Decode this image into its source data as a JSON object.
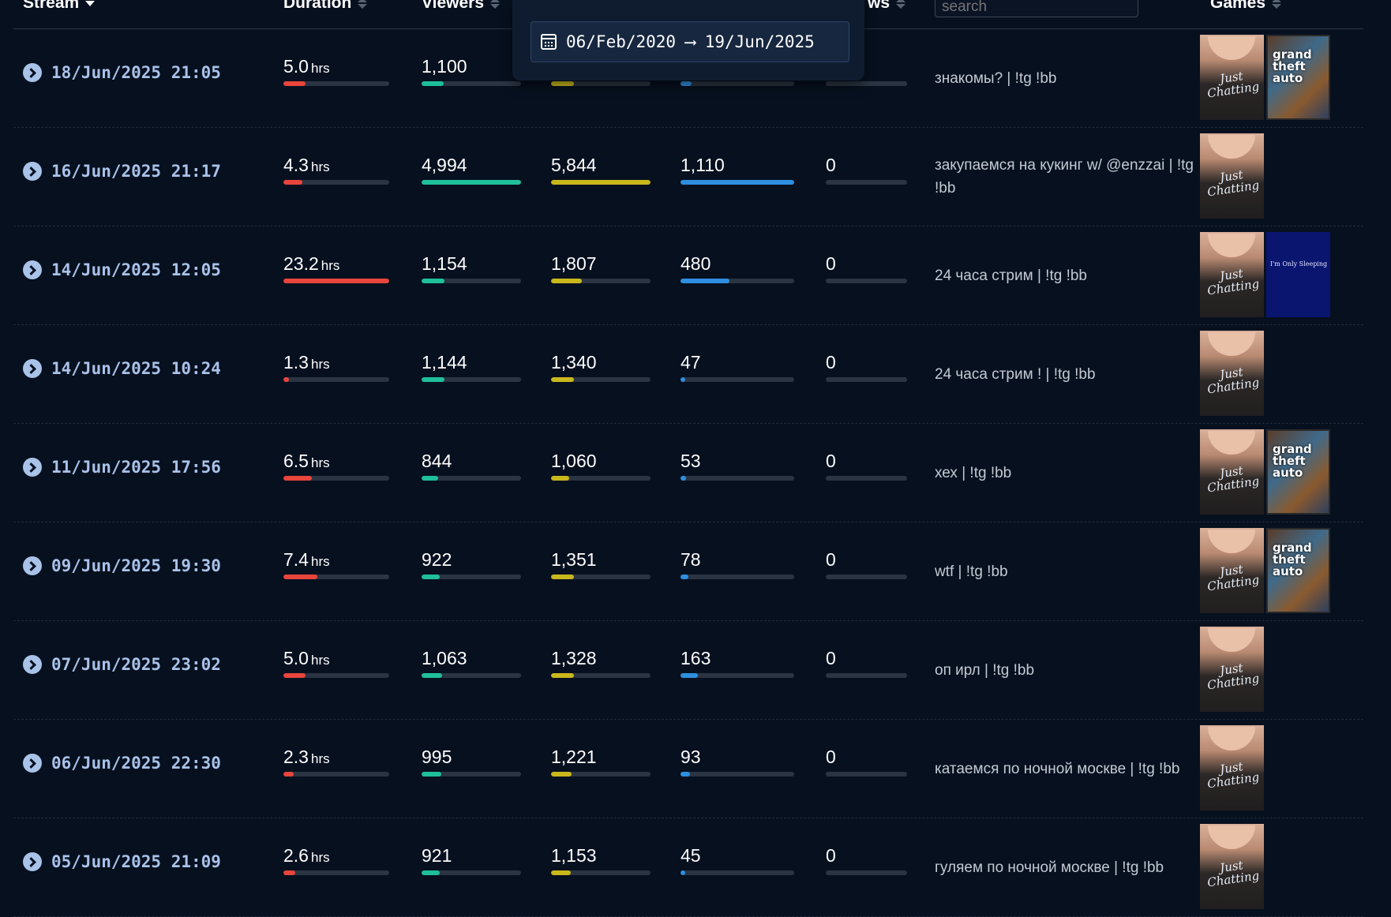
{
  "header": {
    "stream": "Stream",
    "duration": "Duration",
    "viewers": "Viewers",
    "follows_partial": "ws",
    "search_placeholder": "search",
    "games": "Games"
  },
  "date_filter": {
    "from": "06/Feb/2020",
    "arrow": "⟶",
    "to": "19/Jun/2025"
  },
  "colors": {
    "duration": "#e8453c",
    "viewers": "#1fbf9a",
    "peak": "#c9b81c",
    "chatters": "#2e8fe0",
    "followers": "#2a3442"
  },
  "rows": [
    {
      "date": "18/Jun/2025 21:05",
      "duration": "5.0",
      "duration_pct": 0.21,
      "viewers": "1,100",
      "viewers_pct": 0.22,
      "peak": "",
      "peak_pct": 0.23,
      "chatters": "",
      "chatters_pct": 0.1,
      "follows": "",
      "follows_pct": 0,
      "title": "знакомы? | !tg !bb",
      "games": [
        "just-chatting",
        "gta-v"
      ]
    },
    {
      "date": "16/Jun/2025 21:17",
      "duration": "4.3",
      "duration_pct": 0.18,
      "viewers": "4,994",
      "viewers_pct": 1.0,
      "peak": "5,844",
      "peak_pct": 1.0,
      "chatters": "1,110",
      "chatters_pct": 1.0,
      "follows": "0",
      "follows_pct": 0,
      "title": "закупаемся на кукинг w/ @enzzai | !tg !bb",
      "games": [
        "just-chatting"
      ]
    },
    {
      "date": "14/Jun/2025 12:05",
      "duration": "23.2",
      "duration_pct": 1.0,
      "viewers": "1,154",
      "viewers_pct": 0.23,
      "peak": "1,807",
      "peak_pct": 0.31,
      "chatters": "480",
      "chatters_pct": 0.43,
      "follows": "0",
      "follows_pct": 0,
      "title": "24 часа стрим | !tg !bb",
      "games": [
        "just-chatting",
        "im-only-sleeping"
      ]
    },
    {
      "date": "14/Jun/2025 10:24",
      "duration": "1.3",
      "duration_pct": 0.05,
      "viewers": "1,144",
      "viewers_pct": 0.23,
      "peak": "1,340",
      "peak_pct": 0.23,
      "chatters": "47",
      "chatters_pct": 0.04,
      "follows": "0",
      "follows_pct": 0,
      "title": "24 часа стрим ! | !tg !bb",
      "games": [
        "just-chatting"
      ]
    },
    {
      "date": "11/Jun/2025 17:56",
      "duration": "6.5",
      "duration_pct": 0.27,
      "viewers": "844",
      "viewers_pct": 0.17,
      "peak": "1,060",
      "peak_pct": 0.18,
      "chatters": "53",
      "chatters_pct": 0.05,
      "follows": "0",
      "follows_pct": 0,
      "title": "хех | !tg !bb",
      "games": [
        "just-chatting",
        "gta-v"
      ]
    },
    {
      "date": "09/Jun/2025 19:30",
      "duration": "7.4",
      "duration_pct": 0.32,
      "viewers": "922",
      "viewers_pct": 0.18,
      "peak": "1,351",
      "peak_pct": 0.23,
      "chatters": "78",
      "chatters_pct": 0.07,
      "follows": "0",
      "follows_pct": 0,
      "title": "wtf | !tg !bb",
      "games": [
        "just-chatting",
        "gta-v"
      ]
    },
    {
      "date": "07/Jun/2025 23:02",
      "duration": "5.0",
      "duration_pct": 0.21,
      "viewers": "1,063",
      "viewers_pct": 0.21,
      "peak": "1,328",
      "peak_pct": 0.23,
      "chatters": "163",
      "chatters_pct": 0.15,
      "follows": "0",
      "follows_pct": 0,
      "title": "оп ирл | !tg !bb",
      "games": [
        "just-chatting"
      ]
    },
    {
      "date": "06/Jun/2025 22:30",
      "duration": "2.3",
      "duration_pct": 0.1,
      "viewers": "995",
      "viewers_pct": 0.2,
      "peak": "1,221",
      "peak_pct": 0.21,
      "chatters": "93",
      "chatters_pct": 0.08,
      "follows": "0",
      "follows_pct": 0,
      "title": "катаемся по ночной москве | !tg !bb",
      "games": [
        "just-chatting"
      ]
    },
    {
      "date": "05/Jun/2025 21:09",
      "duration": "2.6",
      "duration_pct": 0.11,
      "viewers": "921",
      "viewers_pct": 0.18,
      "peak": "1,153",
      "peak_pct": 0.2,
      "chatters": "45",
      "chatters_pct": 0.04,
      "follows": "0",
      "follows_pct": 0,
      "title": "гуляем по ночной москве | !tg !bb",
      "games": [
        "just-chatting"
      ]
    }
  ],
  "units": {
    "hours": "hrs"
  },
  "game_labels": {
    "just-chatting": "Just Chatting",
    "gta-v": "grand theft auto",
    "im-only-sleeping": "I'm Only Sleeping"
  }
}
